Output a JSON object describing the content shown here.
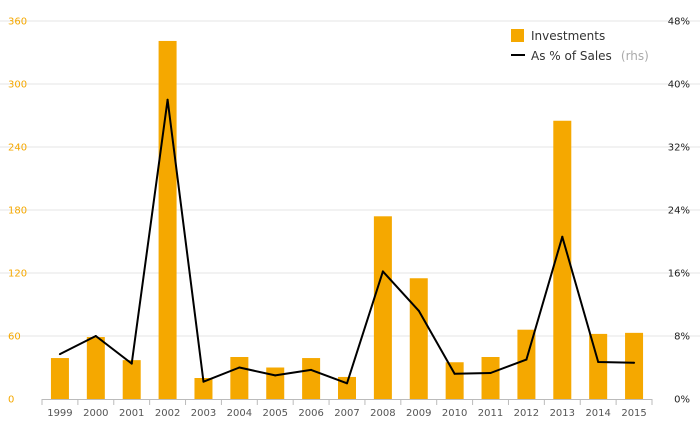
{
  "chart_data": {
    "type": "bar",
    "title": "",
    "xlabel": "",
    "ylabel": "",
    "categories": [
      "1999",
      "2000",
      "2001",
      "2002",
      "2003",
      "2004",
      "2005",
      "2006",
      "2007",
      "2008",
      "2009",
      "2010",
      "2011",
      "2012",
      "2013",
      "2014",
      "2015"
    ],
    "series": [
      {
        "name": "Investments",
        "type": "bar",
        "axis": "left",
        "color": "#f5a800",
        "values": [
          39,
          59,
          37,
          341,
          20,
          40,
          30,
          39,
          21,
          174,
          115,
          35,
          40,
          66,
          265,
          62,
          63
        ]
      },
      {
        "name": "As % of Sales",
        "name_suffix": "(rhs)",
        "type": "line",
        "axis": "right",
        "color": "#000000",
        "values": [
          5.7,
          8.0,
          4.5,
          38.0,
          2.2,
          4.0,
          3.0,
          3.7,
          2.0,
          16.2,
          11.2,
          3.2,
          3.3,
          5.0,
          20.6,
          4.7,
          4.6
        ]
      }
    ],
    "y_left": {
      "ylim": [
        0,
        360
      ],
      "ticks": [
        "0",
        "60",
        "120",
        "180",
        "240",
        "300",
        "360"
      ],
      "color": "#f5a800"
    },
    "y_right": {
      "ylim": [
        0,
        48
      ],
      "ticks": [
        "0%",
        "8%",
        "16%",
        "24%",
        "32%",
        "40%",
        "48%"
      ],
      "color": "#222222"
    },
    "grid": true,
    "legend": "top-right"
  }
}
